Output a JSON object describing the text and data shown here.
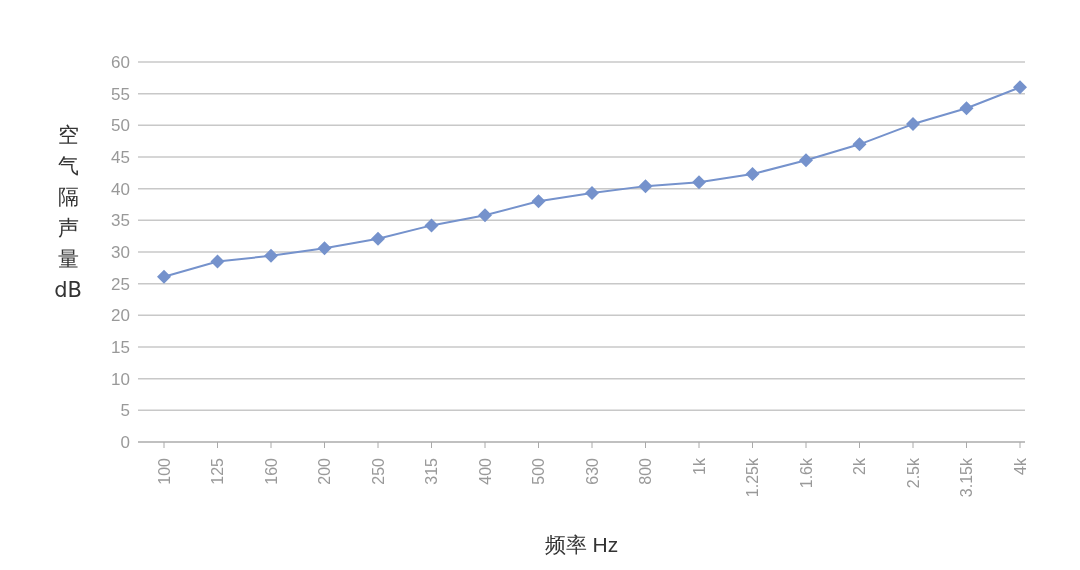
{
  "chart_data": {
    "type": "line",
    "xlabel": "频率 Hz",
    "ylabel": "空气隔声量dB",
    "categories": [
      "100",
      "125",
      "160",
      "200",
      "250",
      "315",
      "400",
      "500",
      "630",
      "800",
      "1k",
      "1.25k",
      "1.6k",
      "2k",
      "2.5k",
      "3.15k",
      "4k"
    ],
    "series": [
      {
        "color": "#7592cc",
        "values": [
          26.1,
          28.5,
          29.4,
          30.6,
          32.1,
          34.2,
          35.8,
          38.0,
          39.3,
          40.4,
          41.0,
          42.3,
          44.5,
          47.0,
          50.2,
          52.7,
          56.0
        ]
      }
    ],
    "ylim": [
      0,
      60
    ],
    "yticks": [
      0,
      5,
      10,
      15,
      20,
      25,
      30,
      35,
      40,
      45,
      50,
      55,
      60
    ],
    "grid": "y",
    "marker": "diamond",
    "legend": false
  }
}
